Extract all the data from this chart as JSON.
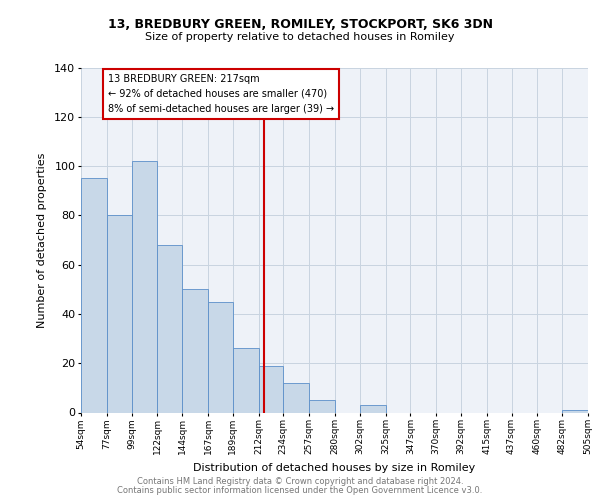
{
  "title_line1": "13, BREDBURY GREEN, ROMILEY, STOCKPORT, SK6 3DN",
  "title_line2": "Size of property relative to detached houses in Romiley",
  "xlabel": "Distribution of detached houses by size in Romiley",
  "ylabel": "Number of detached properties",
  "bar_color": "#c8d8e8",
  "bar_edge_color": "#5b8fc9",
  "annotation_box_color": "#ffffff",
  "annotation_box_edge_color": "#cc0000",
  "vline_color": "#cc0000",
  "grid_color": "#c8d4e0",
  "background_color": "#eef2f8",
  "footer_line1": "Contains HM Land Registry data © Crown copyright and database right 2024.",
  "footer_line2": "Contains public sector information licensed under the Open Government Licence v3.0.",
  "annotation_title": "13 BREDBURY GREEN: 217sqm",
  "annotation_line2": "← 92% of detached houses are smaller (470)",
  "annotation_line3": "8% of semi-detached houses are larger (39) →",
  "bins": [
    54,
    77,
    99,
    122,
    144,
    167,
    189,
    212,
    234,
    257,
    280,
    302,
    325,
    347,
    370,
    392,
    415,
    437,
    460,
    482,
    505
  ],
  "counts": [
    95,
    80,
    102,
    68,
    50,
    45,
    26,
    19,
    12,
    5,
    0,
    3,
    0,
    0,
    0,
    0,
    0,
    0,
    0,
    1
  ],
  "vline_x": 217,
  "ylim": [
    0,
    140
  ],
  "yticks": [
    0,
    20,
    40,
    60,
    80,
    100,
    120,
    140
  ]
}
